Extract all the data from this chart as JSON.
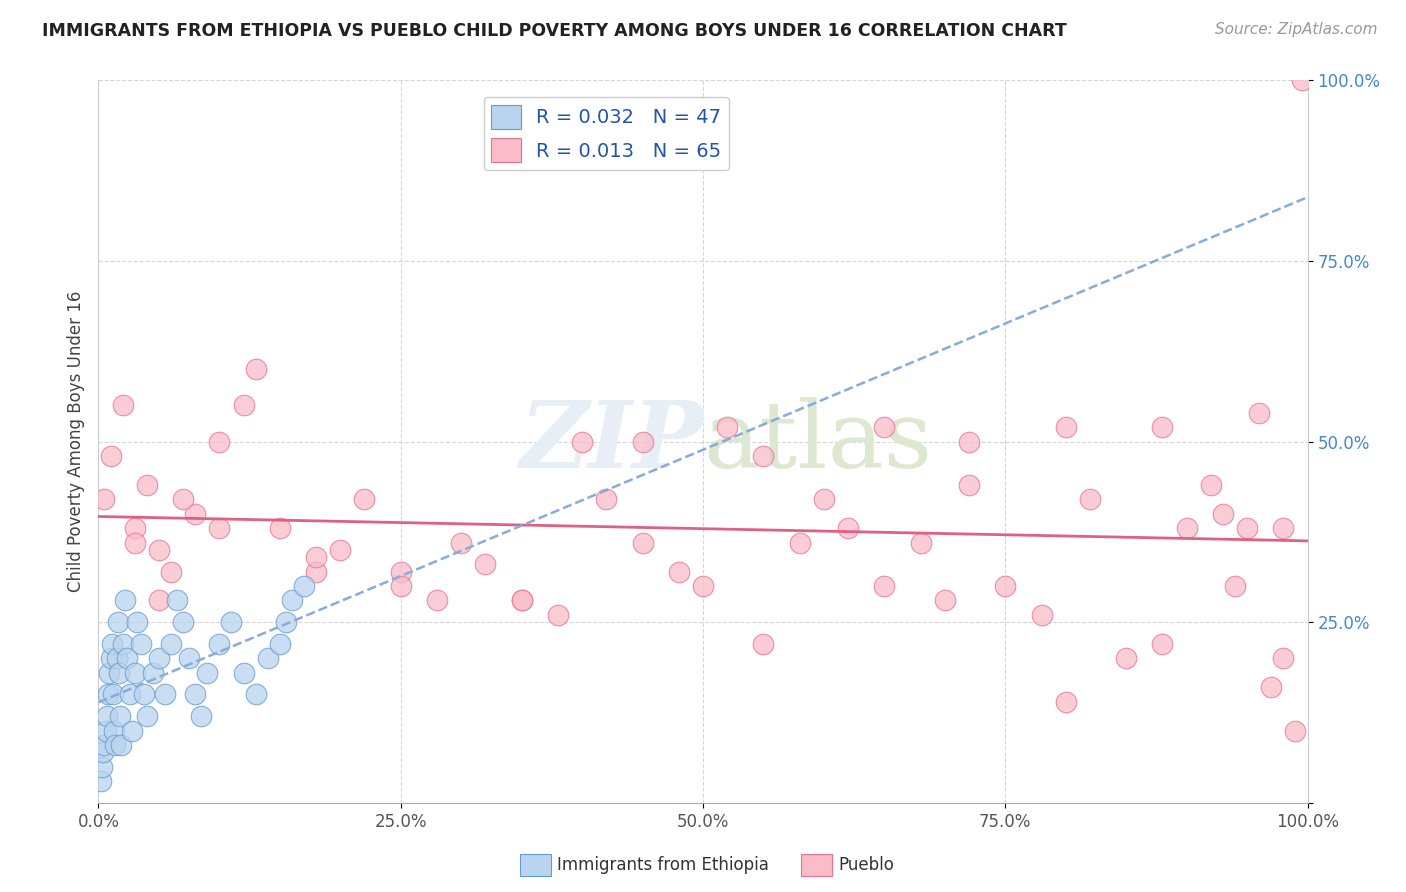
{
  "title": "IMMIGRANTS FROM ETHIOPIA VS PUEBLO CHILD POVERTY AMONG BOYS UNDER 16 CORRELATION CHART",
  "source": "Source: ZipAtlas.com",
  "ylabel": "Child Poverty Among Boys Under 16",
  "legend_label1": "Immigrants from Ethiopia",
  "legend_label2": "Pueblo",
  "r1": 0.032,
  "n1": 47,
  "r2": 0.013,
  "n2": 65,
  "blue_fill": "#b8d4ee",
  "blue_edge": "#6699cc",
  "pink_fill": "#f9bcc8",
  "pink_edge": "#e87090",
  "blue_trend_color": "#88aadd",
  "pink_trend_color": "#e06080",
  "xlim": [
    0,
    100
  ],
  "ylim": [
    0,
    100
  ],
  "xticks": [
    0,
    25,
    50,
    75,
    100
  ],
  "yticks": [
    0,
    25,
    50,
    75,
    100
  ],
  "xtick_labels": [
    "0.0%",
    "25.0%",
    "50.0%",
    "75.0%",
    "100.0%"
  ],
  "ytick_labels": [
    "",
    "25.0%",
    "50.0%",
    "75.0%",
    "100.0%"
  ],
  "blue_x": [
    0.2,
    0.3,
    0.4,
    0.5,
    0.6,
    0.7,
    0.8,
    0.9,
    1.0,
    1.1,
    1.2,
    1.3,
    1.4,
    1.5,
    1.6,
    1.7,
    1.8,
    1.9,
    2.0,
    2.2,
    2.4,
    2.6,
    2.8,
    3.0,
    3.2,
    3.5,
    3.8,
    4.0,
    4.5,
    5.0,
    5.5,
    6.0,
    6.5,
    7.0,
    7.5,
    8.0,
    8.5,
    9.0,
    10.0,
    11.0,
    12.0,
    13.0,
    14.0,
    15.0,
    15.5,
    16.0,
    17.0
  ],
  "blue_y": [
    3.0,
    5.0,
    7.0,
    8.0,
    10.0,
    12.0,
    15.0,
    18.0,
    20.0,
    22.0,
    15.0,
    10.0,
    8.0,
    20.0,
    25.0,
    18.0,
    12.0,
    8.0,
    22.0,
    28.0,
    20.0,
    15.0,
    10.0,
    18.0,
    25.0,
    22.0,
    15.0,
    12.0,
    18.0,
    20.0,
    15.0,
    22.0,
    28.0,
    25.0,
    20.0,
    15.0,
    12.0,
    18.0,
    22.0,
    25.0,
    18.0,
    15.0,
    20.0,
    22.0,
    25.0,
    28.0,
    30.0
  ],
  "pink_x": [
    0.5,
    1.0,
    2.0,
    3.0,
    4.0,
    5.0,
    6.0,
    8.0,
    10.0,
    12.0,
    13.0,
    15.0,
    18.0,
    20.0,
    22.0,
    25.0,
    28.0,
    30.0,
    32.0,
    35.0,
    38.0,
    40.0,
    42.0,
    45.0,
    48.0,
    50.0,
    52.0,
    55.0,
    58.0,
    60.0,
    62.0,
    65.0,
    68.0,
    70.0,
    72.0,
    75.0,
    78.0,
    80.0,
    82.0,
    85.0,
    88.0,
    90.0,
    92.0,
    94.0,
    95.0,
    96.0,
    97.0,
    98.0,
    99.0,
    99.5,
    3.0,
    5.0,
    7.0,
    10.0,
    18.0,
    25.0,
    35.0,
    45.0,
    55.0,
    65.0,
    72.0,
    80.0,
    88.0,
    93.0,
    98.0
  ],
  "pink_y": [
    42.0,
    48.0,
    55.0,
    38.0,
    44.0,
    35.0,
    32.0,
    40.0,
    50.0,
    55.0,
    60.0,
    38.0,
    32.0,
    35.0,
    42.0,
    32.0,
    28.0,
    36.0,
    33.0,
    28.0,
    26.0,
    50.0,
    42.0,
    36.0,
    32.0,
    30.0,
    52.0,
    48.0,
    36.0,
    42.0,
    38.0,
    52.0,
    36.0,
    28.0,
    44.0,
    30.0,
    26.0,
    52.0,
    42.0,
    20.0,
    52.0,
    38.0,
    44.0,
    30.0,
    38.0,
    54.0,
    16.0,
    20.0,
    10.0,
    100.0,
    36.0,
    28.0,
    42.0,
    38.0,
    34.0,
    30.0,
    28.0,
    50.0,
    22.0,
    30.0,
    50.0,
    14.0,
    22.0,
    40.0,
    38.0
  ]
}
